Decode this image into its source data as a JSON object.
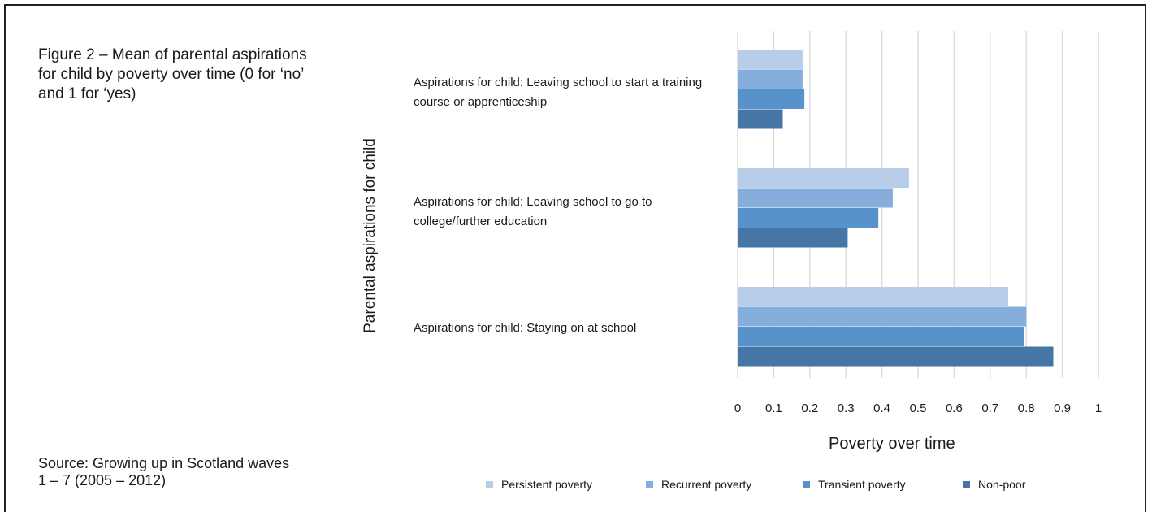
{
  "figure": {
    "caption": "Figure 2 – Mean of parental aspirations for child by poverty over time (0 for ‘no’ and 1 for ‘yes)",
    "source": "Source: Growing up in Scotland waves 1 – 7 (2005 – 2012)"
  },
  "chart_data": {
    "type": "bar",
    "orientation": "horizontal",
    "title": "",
    "xlabel": "Poverty over time",
    "ylabel": "Parental aspirations for child",
    "xlim": [
      0,
      1
    ],
    "xticks": [
      "0",
      "0.1",
      "0.2",
      "0.3",
      "0.4",
      "0.5",
      "0.6",
      "0.7",
      "0.8",
      "0.9",
      "1"
    ],
    "grid": "vertical",
    "legend_position": "bottom",
    "categories": [
      "Aspirations for child: Leaving school to start a training course or apprenticeship",
      "Aspirations for child: Leaving school to go to college/further education",
      "Aspirations for child: Staying on at school"
    ],
    "series": [
      {
        "name": "Persistent poverty",
        "color": "#b8cde8",
        "values": [
          0.18,
          0.475,
          0.75
        ]
      },
      {
        "name": "Recurrent poverty",
        "color": "#86aedd",
        "values": [
          0.18,
          0.43,
          0.8
        ]
      },
      {
        "name": "Transient poverty",
        "color": "#5792ca",
        "values": [
          0.185,
          0.39,
          0.795
        ]
      },
      {
        "name": "Non-poor",
        "color": "#4576a5",
        "values": [
          0.125,
          0.305,
          0.875
        ]
      }
    ]
  }
}
